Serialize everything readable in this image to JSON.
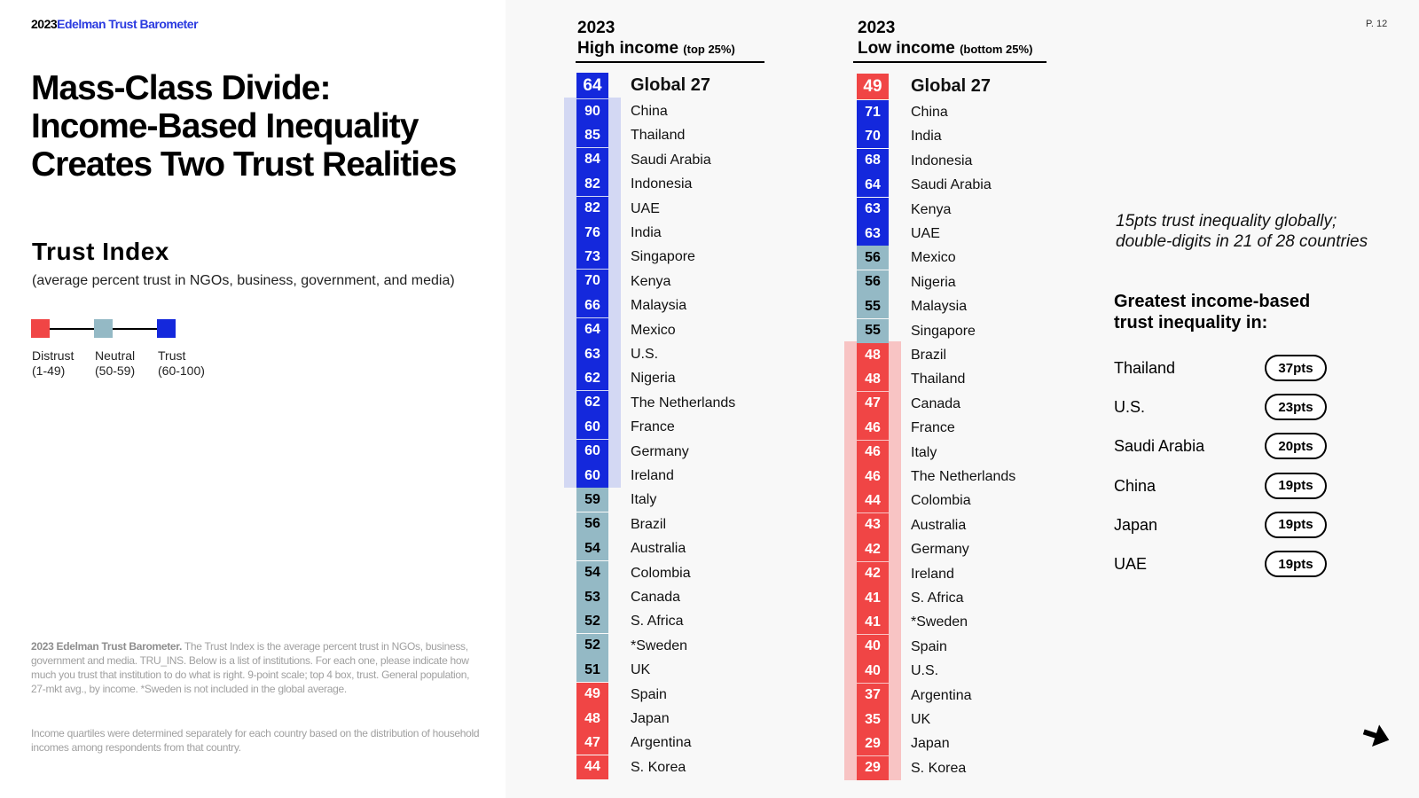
{
  "header": {
    "brand_year": "2023",
    "brand_name": "Edelman Trust Barometer",
    "page": "P. 12"
  },
  "title_lines": [
    "Mass-Class Divide:",
    "Income-Based Inequality",
    "Creates Two Trust Realities"
  ],
  "trust_index": {
    "title": "Trust Index",
    "subtitle": "(average percent trust in NGOs, business, government, and media)"
  },
  "legend": [
    {
      "label": "Distrust",
      "range": "(1-49)",
      "color": "#f04545"
    },
    {
      "label": "Neutral",
      "range": "(50-59)",
      "color": "#94b9c5"
    },
    {
      "label": "Trust",
      "range": "(60-100)",
      "color": "#1428dc"
    }
  ],
  "footnotes": {
    "bold": "2023 Edelman Trust Barometer.",
    "text1": " The Trust Index is the average percent trust in NGOs, business, government and media. TRU_INS. Below is a list of institutions. For each one, please indicate how much you trust that institution to do what is right. 9-point scale; top 4 box, trust. General population, 27-mkt avg., by income. *Sweden is not included in the global average.",
    "text2": "Income quartiles were determined separately for each country based on the distribution of household incomes among respondents from that country."
  },
  "colors": {
    "trust": "#1428dc",
    "neutral": "#94b9c5",
    "distrust": "#f04545",
    "trust_band": "#d3d8f3",
    "distrust_band": "#f8c4c4"
  },
  "chart_data": [
    {
      "type": "table",
      "year": "2023",
      "title": "High income",
      "title_note": "(top 25%)",
      "global": {
        "label": "Global 27",
        "value": 64
      },
      "rows": [
        {
          "country": "China",
          "value": 90
        },
        {
          "country": "Thailand",
          "value": 85
        },
        {
          "country": "Saudi Arabia",
          "value": 84
        },
        {
          "country": "Indonesia",
          "value": 82
        },
        {
          "country": "UAE",
          "value": 82
        },
        {
          "country": "India",
          "value": 76
        },
        {
          "country": "Singapore",
          "value": 73
        },
        {
          "country": "Kenya",
          "value": 70
        },
        {
          "country": "Malaysia",
          "value": 66
        },
        {
          "country": "Mexico",
          "value": 64
        },
        {
          "country": "U.S.",
          "value": 63
        },
        {
          "country": "Nigeria",
          "value": 62
        },
        {
          "country": "The Netherlands",
          "value": 62
        },
        {
          "country": "France",
          "value": 60
        },
        {
          "country": "Germany",
          "value": 60
        },
        {
          "country": "Ireland",
          "value": 60
        },
        {
          "country": "Italy",
          "value": 59
        },
        {
          "country": "Brazil",
          "value": 56
        },
        {
          "country": "Australia",
          "value": 54
        },
        {
          "country": "Colombia",
          "value": 54
        },
        {
          "country": "Canada",
          "value": 53
        },
        {
          "country": "S. Africa",
          "value": 52
        },
        {
          "country": "*Sweden",
          "value": 52
        },
        {
          "country": "UK",
          "value": 51
        },
        {
          "country": "Spain",
          "value": 49
        },
        {
          "country": "Japan",
          "value": 48
        },
        {
          "country": "Argentina",
          "value": 47
        },
        {
          "country": "S. Korea",
          "value": 44
        }
      ]
    },
    {
      "type": "table",
      "year": "2023",
      "title": "Low income",
      "title_note": "(bottom 25%)",
      "global": {
        "label": "Global 27",
        "value": 49
      },
      "rows": [
        {
          "country": "China",
          "value": 71
        },
        {
          "country": "India",
          "value": 70
        },
        {
          "country": "Indonesia",
          "value": 68
        },
        {
          "country": "Saudi Arabia",
          "value": 64
        },
        {
          "country": "Kenya",
          "value": 63
        },
        {
          "country": "UAE",
          "value": 63
        },
        {
          "country": "Mexico",
          "value": 56
        },
        {
          "country": "Nigeria",
          "value": 56
        },
        {
          "country": "Malaysia",
          "value": 55
        },
        {
          "country": "Singapore",
          "value": 55
        },
        {
          "country": "Brazil",
          "value": 48
        },
        {
          "country": "Thailand",
          "value": 48
        },
        {
          "country": "Canada",
          "value": 47
        },
        {
          "country": "France",
          "value": 46
        },
        {
          "country": "Italy",
          "value": 46
        },
        {
          "country": "The Netherlands",
          "value": 46
        },
        {
          "country": "Colombia",
          "value": 44
        },
        {
          "country": "Australia",
          "value": 43
        },
        {
          "country": "Germany",
          "value": 42
        },
        {
          "country": "Ireland",
          "value": 42
        },
        {
          "country": "S. Africa",
          "value": 41
        },
        {
          "country": "*Sweden",
          "value": 41
        },
        {
          "country": "Spain",
          "value": 40
        },
        {
          "country": "U.S.",
          "value": 40
        },
        {
          "country": "Argentina",
          "value": 37
        },
        {
          "country": "UK",
          "value": 35
        },
        {
          "country": "Japan",
          "value": 29
        },
        {
          "country": "S. Korea",
          "value": 29
        }
      ]
    }
  ],
  "insight": {
    "quote_lines": [
      "15pts trust inequality globally;",
      "double-digits in 21 of 28 countries"
    ],
    "title_lines": [
      "Greatest income-based",
      "trust inequality in:"
    ],
    "items": [
      {
        "country": "Thailand",
        "gap": "37pts"
      },
      {
        "country": "U.S.",
        "gap": "23pts"
      },
      {
        "country": "Saudi Arabia",
        "gap": "20pts"
      },
      {
        "country": "China",
        "gap": "19pts"
      },
      {
        "country": "Japan",
        "gap": "19pts"
      },
      {
        "country": "UAE",
        "gap": "19pts"
      }
    ]
  }
}
